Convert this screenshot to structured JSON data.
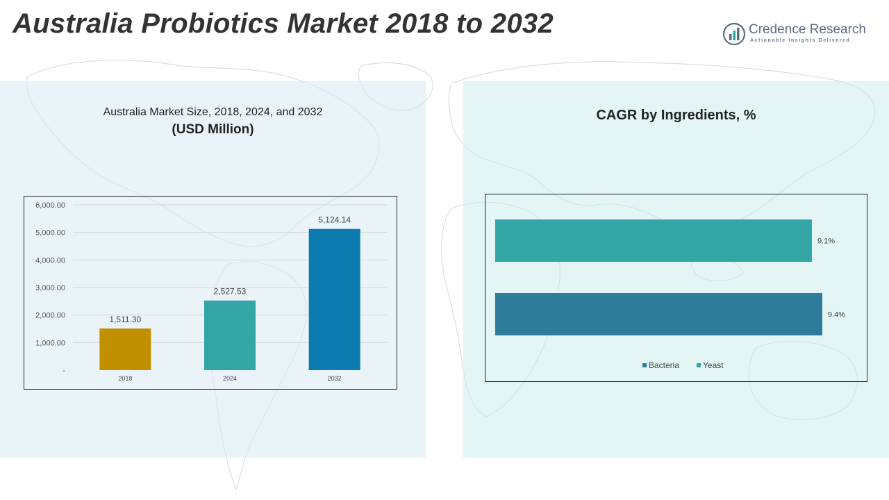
{
  "title": "Australia Probiotics Market 2018 to 2032",
  "logo": {
    "name": "Credence Research",
    "tagline": "Actionable Insights Delivered",
    "icon": "bar-chart-head-icon"
  },
  "left_panel": {
    "title_line1": "Australia Market Size, 2018, 2024, and 2032",
    "title_line2": "(USD Million)"
  },
  "right_panel": {
    "title": "CAGR by Ingredients, %"
  },
  "colors": {
    "bar_2018": "#c09000",
    "bar_2024": "#33a5a5",
    "bar_2032": "#0b7bb0",
    "bacteria": "#2e7b9a",
    "yeast": "#33a5a5"
  },
  "chart_data": [
    {
      "type": "bar",
      "categories": [
        "2018",
        "2024",
        "2032"
      ],
      "values": [
        1511.3,
        2527.53,
        5124.14
      ],
      "value_labels": [
        "1,511.30",
        "2,527.53",
        "5,124.14"
      ],
      "y_ticks": [
        0,
        1000,
        2000,
        3000,
        4000,
        5000,
        6000
      ],
      "y_tick_labels": [
        "-",
        "1,000.00",
        "2,000.00",
        "3,000.00",
        "4,000.00",
        "5,000.00",
        "6,000.00"
      ],
      "ylim": [
        0,
        6000
      ],
      "grid": true
    },
    {
      "type": "bar",
      "orientation": "horizontal",
      "series": [
        {
          "name": "Yeast",
          "value": 9.1,
          "label": "9.1%"
        },
        {
          "name": "Bacteria",
          "value": 9.4,
          "label": "9.4%"
        }
      ],
      "legend": [
        "Bacteria",
        "Yeast"
      ],
      "legend_position": "bottom",
      "xlim": [
        0,
        9.7
      ],
      "grid": false
    }
  ]
}
